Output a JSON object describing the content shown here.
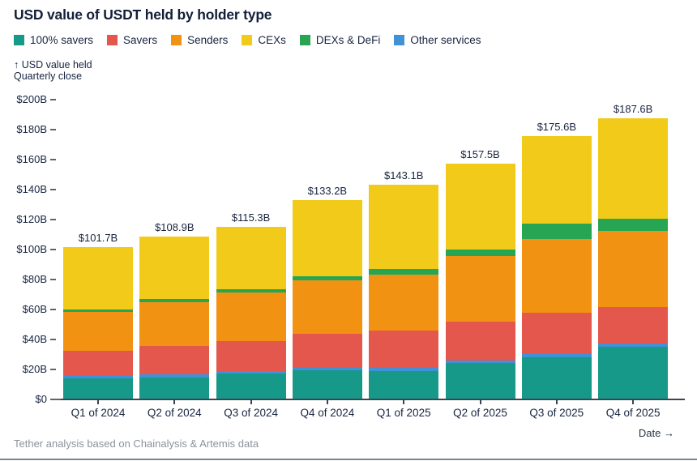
{
  "title": "USD value of USDT held by holder type",
  "y_axis_annotation": {
    "line1": "↑ USD value held",
    "line2": "Quarterly close"
  },
  "footer": {
    "source": "Tether analysis based on Chainalysis & Artemis data",
    "x_axis_hint": "Date →"
  },
  "legend": [
    {
      "label": "100% savers",
      "color": "#17998a"
    },
    {
      "label": "Savers",
      "color": "#e4574d"
    },
    {
      "label": "Senders",
      "color": "#f29212"
    },
    {
      "label": "CEXs",
      "color": "#f2ca1a"
    },
    {
      "label": "DEXs & DeFi",
      "color": "#28a553"
    },
    {
      "label": "Other services",
      "color": "#4191d6"
    }
  ],
  "chart_data": {
    "type": "bar",
    "stacked": true,
    "title": "USD value of USDT held by holder type",
    "ylabel": "USD value held, quarterly close",
    "xlabel": "Date",
    "ylim": [
      0,
      200
    ],
    "grid": false,
    "legend_position": "top",
    "y_ticks": [
      {
        "label": "$200B",
        "value": 200
      },
      {
        "label": "$180B",
        "value": 180
      },
      {
        "label": "$160B",
        "value": 160
      },
      {
        "label": "$140B",
        "value": 140
      },
      {
        "label": "$120B",
        "value": 120
      },
      {
        "label": "$100B",
        "value": 100
      },
      {
        "label": "$80B",
        "value": 80
      },
      {
        "label": "$60B",
        "value": 60
      },
      {
        "label": "$40B",
        "value": 40
      },
      {
        "label": "$20B",
        "value": 20
      },
      {
        "label": "$0",
        "value": 0
      }
    ],
    "categories": [
      "Q1 of 2024",
      "Q2 of 2024",
      "Q3 of 2024",
      "Q4 of 2024",
      "Q1 of 2025",
      "Q2 of 2025",
      "Q3 of 2025",
      "Q4 of 2025"
    ],
    "totals": [
      101.7,
      108.9,
      115.3,
      133.2,
      143.1,
      157.5,
      175.6,
      187.6
    ],
    "total_labels": [
      "$101.7B",
      "$108.9B",
      "$115.3B",
      "$133.2B",
      "$143.1B",
      "$157.5B",
      "$175.6B",
      "$187.6B"
    ],
    "stack_order": "series listed bottom to top",
    "series": [
      {
        "name": "100% savers",
        "color": "#17998a",
        "values": [
          14.0,
          14.6,
          17.3,
          19.3,
          19.1,
          24.6,
          28.2,
          35.4
        ]
      },
      {
        "name": "Other services",
        "color": "#4191d6",
        "values": [
          1.9,
          2.2,
          1.8,
          2.2,
          2.7,
          1.5,
          2.2,
          1.8
        ]
      },
      {
        "name": "Savers",
        "color": "#e4574d",
        "values": [
          16.8,
          19.0,
          19.9,
          22.4,
          24.1,
          25.6,
          27.6,
          24.4
        ]
      },
      {
        "name": "Senders",
        "color": "#f29212",
        "values": [
          25.8,
          29.1,
          32.5,
          35.8,
          37.4,
          43.9,
          49.3,
          51.1
        ]
      },
      {
        "name": "DEXs & DeFi",
        "color": "#28a553",
        "values": [
          1.7,
          2.1,
          1.8,
          2.7,
          4.0,
          4.3,
          9.8,
          7.6
        ]
      },
      {
        "name": "CEXs",
        "color": "#f2ca1a",
        "values": [
          41.5,
          41.9,
          42.0,
          50.8,
          55.8,
          57.6,
          58.5,
          67.3
        ]
      }
    ]
  }
}
